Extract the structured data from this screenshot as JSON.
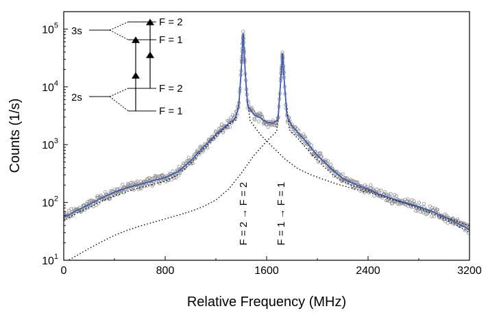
{
  "chart_data": {
    "type": "scatter",
    "xlabel": "Relative Frequency (MHz)",
    "ylabel": "Counts (1/s)",
    "xlim": [
      0,
      3200
    ],
    "ylim": [
      10,
      200000
    ],
    "yscale": "log",
    "x_ticks": [
      0,
      800,
      1600,
      2400,
      3200
    ],
    "x_tick_labels": [
      "0",
      "800",
      "1600",
      "2400",
      "3200"
    ],
    "y_ticks": [
      10,
      100,
      1000,
      10000,
      100000
    ],
    "y_tick_labels": [
      {
        "base": "10",
        "exp": "1"
      },
      {
        "base": "10",
        "exp": "2"
      },
      {
        "base": "10",
        "exp": "3"
      },
      {
        "base": "10",
        "exp": "4"
      },
      {
        "base": "10",
        "exp": "5"
      }
    ],
    "grid": false,
    "colors": {
      "data_points": "#8a8a8a",
      "fit": "#3d5bb8",
      "components": "#000000"
    },
    "peaks": [
      {
        "label": "F = 2 → F = 2",
        "x": 1415,
        "y": 88000
      },
      {
        "label": "F = 1 → F = 1",
        "x": 1725,
        "y": 38000
      }
    ],
    "fit_points": [
      [
        0,
        55
      ],
      [
        100,
        72
      ],
      [
        200,
        92
      ],
      [
        300,
        120
      ],
      [
        400,
        150
      ],
      [
        500,
        180
      ],
      [
        600,
        205
      ],
      [
        700,
        235
      ],
      [
        800,
        270
      ],
      [
        900,
        340
      ],
      [
        1000,
        520
      ],
      [
        1100,
        900
      ],
      [
        1200,
        1500
      ],
      [
        1300,
        2300
      ],
      [
        1350,
        2800
      ],
      [
        1380,
        4500
      ],
      [
        1400,
        20000
      ],
      [
        1415,
        88000
      ],
      [
        1430,
        20000
      ],
      [
        1450,
        4800
      ],
      [
        1500,
        3300
      ],
      [
        1550,
        2900
      ],
      [
        1600,
        2450
      ],
      [
        1650,
        2350
      ],
      [
        1690,
        2700
      ],
      [
        1710,
        12000
      ],
      [
        1725,
        38000
      ],
      [
        1740,
        12000
      ],
      [
        1760,
        3200
      ],
      [
        1800,
        2100
      ],
      [
        1900,
        1200
      ],
      [
        2000,
        650
      ],
      [
        2100,
        400
      ],
      [
        2200,
        260
      ],
      [
        2300,
        205
      ],
      [
        2400,
        170
      ],
      [
        2500,
        135
      ],
      [
        2600,
        115
      ],
      [
        2700,
        98
      ],
      [
        2800,
        85
      ],
      [
        2900,
        70
      ],
      [
        3000,
        56
      ],
      [
        3100,
        44
      ],
      [
        3200,
        34
      ]
    ],
    "component_1_points": [
      [
        0,
        48
      ],
      [
        100,
        65
      ],
      [
        200,
        82
      ],
      [
        300,
        105
      ],
      [
        400,
        130
      ],
      [
        500,
        155
      ],
      [
        600,
        180
      ],
      [
        700,
        205
      ],
      [
        800,
        235
      ],
      [
        900,
        300
      ],
      [
        1000,
        470
      ],
      [
        1100,
        820
      ],
      [
        1200,
        1400
      ],
      [
        1300,
        2200
      ],
      [
        1360,
        2700
      ],
      [
        1390,
        8000
      ],
      [
        1415,
        88000
      ],
      [
        1440,
        8000
      ],
      [
        1470,
        2600
      ],
      [
        1550,
        1500
      ],
      [
        1650,
        900
      ],
      [
        1750,
        550
      ],
      [
        1850,
        380
      ],
      [
        1950,
        300
      ],
      [
        2050,
        250
      ],
      [
        2150,
        210
      ],
      [
        2300,
        170
      ],
      [
        2450,
        140
      ],
      [
        2600,
        110
      ],
      [
        2750,
        90
      ],
      [
        2900,
        70
      ],
      [
        3050,
        52
      ],
      [
        3200,
        40
      ]
    ],
    "component_2_points": [
      [
        0,
        9
      ],
      [
        100,
        12
      ],
      [
        200,
        16
      ],
      [
        300,
        21
      ],
      [
        400,
        27
      ],
      [
        500,
        33
      ],
      [
        600,
        39
      ],
      [
        700,
        45
      ],
      [
        800,
        52
      ],
      [
        900,
        60
      ],
      [
        1000,
        70
      ],
      [
        1100,
        85
      ],
      [
        1200,
        110
      ],
      [
        1300,
        170
      ],
      [
        1400,
        320
      ],
      [
        1500,
        650
      ],
      [
        1600,
        1150
      ],
      [
        1680,
        1700
      ],
      [
        1705,
        8000
      ],
      [
        1725,
        38000
      ],
      [
        1745,
        8000
      ],
      [
        1780,
        1800
      ],
      [
        1850,
        1250
      ],
      [
        1950,
        700
      ],
      [
        2050,
        420
      ],
      [
        2150,
        270
      ],
      [
        2250,
        205
      ],
      [
        2400,
        160
      ],
      [
        2550,
        125
      ],
      [
        2700,
        95
      ],
      [
        2850,
        72
      ],
      [
        3000,
        52
      ],
      [
        3100,
        40
      ],
      [
        3200,
        30
      ]
    ],
    "inset": {
      "levels_upper": {
        "label": "3s",
        "sublevels": [
          "F = 2",
          "F = 1"
        ]
      },
      "levels_lower": {
        "label": "2s",
        "sublevels": [
          "F = 2",
          "F = 1"
        ]
      }
    }
  }
}
